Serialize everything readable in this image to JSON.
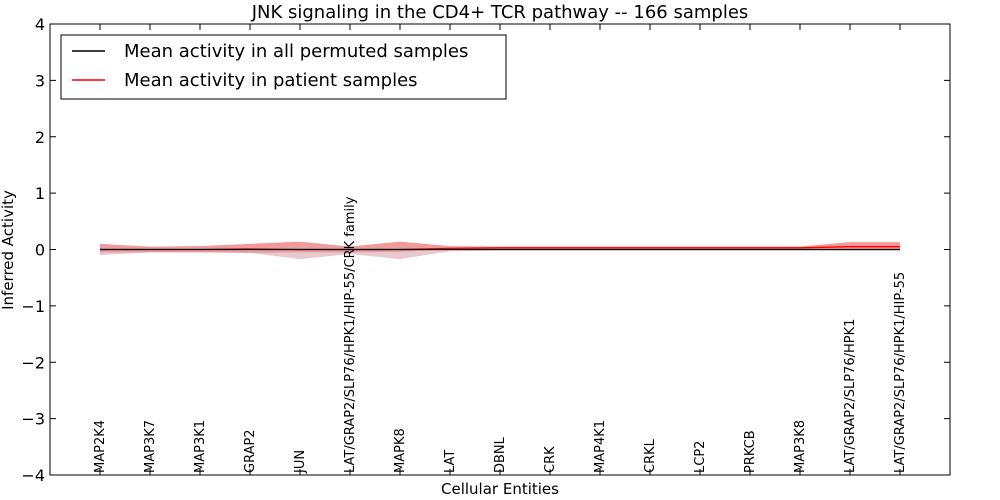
{
  "colors": {
    "permuted_line": "#000000",
    "patient_line": "#ff0000",
    "patient_band": "#f47e7e",
    "permuted_band": "#d8a5ad",
    "axis": "#000000",
    "background": "#ffffff"
  },
  "chart_data": {
    "type": "line",
    "title": "JNK signaling in the CD4+ TCR pathway -- 166 samples",
    "xlabel": "Cellular Entities",
    "ylabel": "Inferred Activity",
    "ylim": [
      -4,
      4
    ],
    "yticks": [
      -4,
      -3,
      -2,
      -1,
      0,
      1,
      2,
      3,
      4
    ],
    "ytick_labels": [
      "−4",
      "−3",
      "−2",
      "−1",
      "0",
      "1",
      "2",
      "3",
      "4"
    ],
    "grid": false,
    "legend_position": "top-left",
    "categories": [
      "MAP2K4",
      "MAP3K7",
      "MAP3K1",
      "GRAP2",
      "JUN",
      "LAT/GRAP2/SLP76/HPK1/HIP-55/CRK family",
      "MAPK8",
      "LAT",
      "DBNL",
      "CRK",
      "MAP4K1",
      "CRKL",
      "LCP2",
      "PRKCB",
      "MAP3K8",
      "LAT/GRAP2/SLP76/HPK1",
      "LAT/GRAP2/SLP76/HPK1/HIP-55"
    ],
    "series": [
      {
        "name": "Mean activity in all permuted samples",
        "color": "#000000",
        "style": "solid",
        "values": [
          0.0,
          0.0,
          0.0,
          0.0,
          0.0,
          0.0,
          0.0,
          0.0,
          0.0,
          0.0,
          0.0,
          0.0,
          0.0,
          0.0,
          0.0,
          0.0,
          0.0
        ],
        "band_lower": [
          -0.1,
          -0.05,
          -0.05,
          -0.06,
          -0.17,
          -0.08,
          -0.17,
          -0.03,
          -0.02,
          -0.02,
          -0.02,
          -0.02,
          -0.02,
          -0.02,
          -0.02,
          -0.02,
          -0.02
        ],
        "band_upper": [
          0.05,
          0.03,
          0.03,
          0.03,
          0.06,
          0.04,
          0.06,
          0.02,
          0.02,
          0.02,
          0.02,
          0.02,
          0.02,
          0.02,
          0.02,
          0.02,
          0.02
        ]
      },
      {
        "name": "Mean activity in patient samples",
        "color": "#ff0000",
        "style": "solid",
        "values": [
          0.0,
          0.0,
          0.0,
          0.01,
          0.0,
          0.0,
          0.0,
          0.02,
          0.03,
          0.03,
          0.03,
          0.03,
          0.03,
          0.03,
          0.03,
          0.05,
          0.05
        ],
        "band_lower": [
          -0.05,
          -0.05,
          -0.05,
          -0.06,
          -0.05,
          -0.05,
          -0.04,
          0.0,
          0.01,
          0.01,
          0.01,
          0.01,
          0.01,
          0.01,
          0.01,
          0.0,
          0.0
        ],
        "band_upper": [
          0.1,
          0.05,
          0.06,
          0.1,
          0.14,
          0.05,
          0.14,
          0.06,
          0.05,
          0.05,
          0.05,
          0.05,
          0.05,
          0.05,
          0.05,
          0.13,
          0.13
        ]
      }
    ],
    "baseline": {
      "value": 0,
      "style": "dotted"
    }
  }
}
